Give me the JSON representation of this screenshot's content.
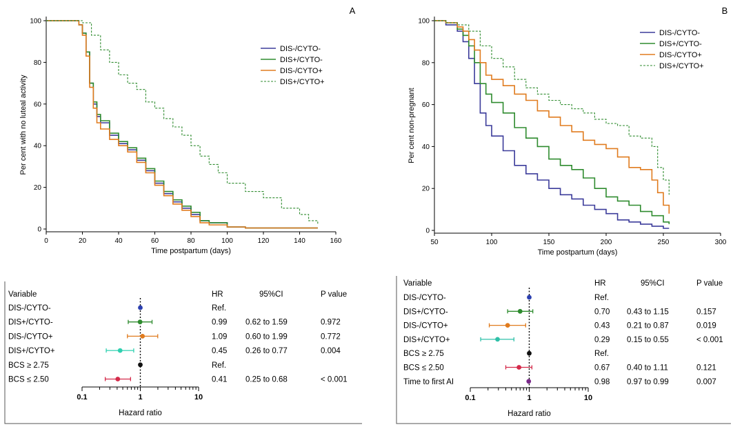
{
  "chart_data": [
    {
      "type": "line",
      "panel_label": "A",
      "xlabel": "Time postpartum (days)",
      "ylabel": "Per cent with no luteal activity",
      "xlim": [
        0,
        160
      ],
      "ylim": [
        0,
        100
      ],
      "xticks": [
        0,
        20,
        40,
        60,
        80,
        100,
        120,
        140,
        160
      ],
      "yticks": [
        0,
        20,
        40,
        60,
        80,
        100
      ],
      "legend_position": "top-right",
      "series": [
        {
          "name": "DIS-/CYTO-",
          "color": "#3b3b9a",
          "dash": "solid",
          "x": [
            0,
            15,
            18,
            20,
            22,
            24,
            26,
            28,
            30,
            35,
            40,
            45,
            50,
            55,
            60,
            65,
            70,
            75,
            80,
            85,
            90,
            100,
            110,
            150
          ],
          "y": [
            100,
            100,
            98,
            94,
            85,
            70,
            60,
            54,
            51,
            45,
            41,
            38,
            33,
            28,
            22,
            17,
            13,
            10,
            7,
            4,
            3,
            1,
            0.5,
            0.5
          ]
        },
        {
          "name": "DIS+/CYTO-",
          "color": "#2e8b2e",
          "dash": "solid",
          "x": [
            0,
            15,
            18,
            20,
            22,
            24,
            26,
            28,
            30,
            35,
            40,
            45,
            50,
            55,
            60,
            65,
            70,
            75,
            80,
            85,
            90,
            100,
            110,
            150
          ],
          "y": [
            100,
            100,
            98,
            94,
            85,
            70,
            61,
            55,
            52,
            46,
            42,
            39,
            34,
            29,
            23,
            18,
            14,
            11,
            8,
            4,
            3,
            1,
            0.5,
            0.5
          ]
        },
        {
          "name": "DIS-/CYTO+",
          "color": "#e07b1e",
          "dash": "solid",
          "x": [
            0,
            15,
            18,
            20,
            22,
            24,
            26,
            28,
            30,
            35,
            40,
            45,
            50,
            55,
            60,
            65,
            70,
            75,
            80,
            85,
            90,
            100,
            110,
            150
          ],
          "y": [
            100,
            100,
            98,
            93,
            83,
            68,
            58,
            51,
            48,
            43,
            40,
            37,
            32,
            27,
            21,
            16,
            12,
            9,
            6,
            3,
            2,
            1,
            0.5,
            0.5
          ]
        },
        {
          "name": "DIS+/CYTO+",
          "color": "#2e8b2e",
          "dash": "dashed",
          "x": [
            0,
            20,
            25,
            30,
            35,
            40,
            45,
            50,
            55,
            60,
            65,
            70,
            75,
            80,
            85,
            90,
            95,
            100,
            110,
            120,
            130,
            140,
            145,
            150
          ],
          "y": [
            100,
            99,
            93,
            86,
            80,
            74,
            70,
            67,
            61,
            58,
            53,
            49,
            45,
            40,
            35,
            31,
            27,
            22,
            18,
            15,
            10,
            7,
            4,
            2
          ]
        }
      ]
    },
    {
      "type": "line",
      "panel_label": "B",
      "xlabel": "Time postpartum (days)",
      "ylabel": "Per cent non-pregnant",
      "xlim": [
        50,
        300
      ],
      "ylim": [
        0,
        100
      ],
      "xticks": [
        50,
        100,
        150,
        200,
        250,
        300
      ],
      "yticks": [
        0,
        20,
        40,
        60,
        80,
        100
      ],
      "legend_position": "top-right",
      "series": [
        {
          "name": "DIS-/CYTO-",
          "color": "#3b3b9a",
          "dash": "solid",
          "x": [
            50,
            60,
            70,
            75,
            80,
            85,
            90,
            95,
            100,
            110,
            120,
            130,
            140,
            150,
            160,
            170,
            180,
            190,
            200,
            210,
            220,
            230,
            240,
            250,
            255
          ],
          "y": [
            100,
            98,
            95,
            90,
            82,
            70,
            56,
            50,
            45,
            38,
            31,
            27,
            24,
            20,
            17,
            15,
            12,
            10,
            8,
            5,
            4,
            3,
            2,
            1,
            1
          ]
        },
        {
          "name": "DIS+/CYTO-",
          "color": "#2e8b2e",
          "dash": "solid",
          "x": [
            50,
            60,
            70,
            75,
            80,
            85,
            90,
            95,
            100,
            110,
            120,
            130,
            140,
            150,
            160,
            170,
            180,
            190,
            200,
            210,
            220,
            230,
            240,
            250,
            255
          ],
          "y": [
            100,
            99,
            96,
            93,
            88,
            80,
            70,
            65,
            61,
            56,
            49,
            44,
            40,
            34,
            31,
            29,
            25,
            20,
            16,
            14,
            12,
            9,
            7,
            4,
            3
          ]
        },
        {
          "name": "DIS-/CYTO+",
          "color": "#e07b1e",
          "dash": "solid",
          "x": [
            50,
            60,
            70,
            75,
            80,
            85,
            90,
            95,
            100,
            110,
            120,
            130,
            140,
            150,
            160,
            170,
            180,
            190,
            200,
            210,
            220,
            230,
            240,
            245,
            250,
            255
          ],
          "y": [
            100,
            99,
            97,
            95,
            91,
            86,
            80,
            74,
            72,
            69,
            65,
            62,
            57,
            54,
            50,
            47,
            43,
            41,
            39,
            35,
            30,
            29,
            24,
            18,
            12,
            8
          ]
        },
        {
          "name": "DIS+/CYTO+",
          "color": "#2e8b2e",
          "dash": "dashed",
          "x": [
            50,
            60,
            70,
            80,
            90,
            100,
            110,
            120,
            130,
            140,
            150,
            160,
            170,
            180,
            190,
            200,
            210,
            220,
            230,
            240,
            245,
            250,
            255
          ],
          "y": [
            100,
            99,
            98,
            95,
            88,
            82,
            78,
            72,
            68,
            65,
            62,
            60,
            58,
            56,
            53,
            51,
            50,
            45,
            44,
            40,
            30,
            24,
            17
          ]
        }
      ]
    },
    {
      "type": "forest",
      "xlabel": "Hazard ratio",
      "xscale": "log",
      "xlim": [
        0.1,
        10
      ],
      "xtick_labels": [
        "0.1",
        "1",
        "10"
      ],
      "reference_value": 1,
      "headers": {
        "variable": "Variable",
        "hr": "HR",
        "ci": "95%CI",
        "p": "P value"
      },
      "rows": [
        {
          "variable": "DIS-/CYTO-",
          "hr_text": "Ref.",
          "ci_text": "",
          "p_text": "",
          "hr": 1,
          "lo": null,
          "hi": null,
          "color": "#2b3fb0"
        },
        {
          "variable": "DIS+/CYTO-",
          "hr_text": "0.99",
          "ci_text": "0.62 to 1.59",
          "p_text": "0.972",
          "hr": 0.99,
          "lo": 0.62,
          "hi": 1.59,
          "color": "#2e8b2e"
        },
        {
          "variable": "DIS-/CYTO+",
          "hr_text": "1.09",
          "ci_text": "0.60 to 1.99",
          "p_text": "0.772",
          "hr": 1.09,
          "lo": 0.6,
          "hi": 1.99,
          "color": "#e07b1e"
        },
        {
          "variable": "DIS+/CYTO+",
          "hr_text": "0.45",
          "ci_text": "0.26 to 0.77",
          "p_text": "0.004",
          "hr": 0.45,
          "lo": 0.26,
          "hi": 0.77,
          "color": "#2fd0b0"
        },
        {
          "variable": "BCS ≥ 2.75",
          "hr_text": "Ref.",
          "ci_text": "",
          "p_text": "",
          "hr": 1,
          "lo": null,
          "hi": null,
          "color": "#111111"
        },
        {
          "variable": "BCS ≤ 2.50",
          "hr_text": "0.41",
          "ci_text": "0.25 to 0.68",
          "p_text": "< 0.001",
          "hr": 0.41,
          "lo": 0.25,
          "hi": 0.68,
          "color": "#d42a4a"
        }
      ]
    },
    {
      "type": "forest",
      "xlabel": "Hazard ratio",
      "xscale": "log",
      "xlim": [
        0.1,
        10
      ],
      "xtick_labels": [
        "0.1",
        "1",
        "10"
      ],
      "reference_value": 1,
      "headers": {
        "variable": "Variable",
        "hr": "HR",
        "ci": "95%CI",
        "p": "P value"
      },
      "rows": [
        {
          "variable": "DIS-/CYTO-",
          "hr_text": "Ref.",
          "ci_text": "",
          "p_text": "",
          "hr": 1,
          "lo": null,
          "hi": null,
          "color": "#2b3fb0"
        },
        {
          "variable": "DIS+/CYTO-",
          "hr_text": "0.70",
          "ci_text": "0.43 to 1.15",
          "p_text": "0.157",
          "hr": 0.7,
          "lo": 0.43,
          "hi": 1.15,
          "color": "#2e8b2e"
        },
        {
          "variable": "DIS-/CYTO+",
          "hr_text": "0.43",
          "ci_text": "0.21 to 0.87",
          "p_text": "0.019",
          "hr": 0.43,
          "lo": 0.21,
          "hi": 0.87,
          "color": "#e07b1e"
        },
        {
          "variable": "DIS+/CYTO+",
          "hr_text": "0.29",
          "ci_text": "0.15 to 0.55",
          "p_text": "< 0.001",
          "hr": 0.29,
          "lo": 0.15,
          "hi": 0.55,
          "color": "#2fc0a8"
        },
        {
          "variable": "BCS ≥ 2.75",
          "hr_text": "Ref.",
          "ci_text": "",
          "p_text": "",
          "hr": 1,
          "lo": null,
          "hi": null,
          "color": "#111111"
        },
        {
          "variable": "BCS ≤ 2.50",
          "hr_text": "0.67",
          "ci_text": "0.40 to 1.11",
          "p_text": "0.121",
          "hr": 0.67,
          "lo": 0.4,
          "hi": 1.11,
          "color": "#d42a4a"
        },
        {
          "variable": "Time to first AI",
          "hr_text": "0.98",
          "ci_text": "0.97 to 0.99",
          "p_text": "0.007",
          "hr": 0.98,
          "lo": 0.97,
          "hi": 0.99,
          "color": "#7a2a8a"
        }
      ]
    }
  ]
}
